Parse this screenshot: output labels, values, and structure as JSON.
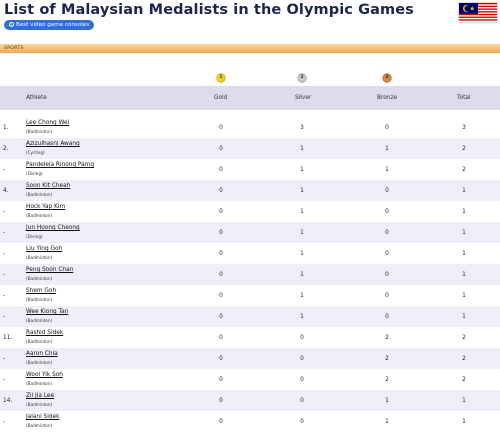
{
  "header": {
    "title": "List of Malaysian Medalists in the Olympic Games",
    "link_label": "Best video game consoles",
    "link_icon": "info-icon",
    "flag_icon": "malaysia-flag-icon"
  },
  "section": {
    "label": "SPORTS"
  },
  "medals": {
    "gold": "1",
    "silver": "2",
    "bronze": "3"
  },
  "columns": {
    "athlete": "Athlete",
    "gold": "Gold",
    "silver": "Silver",
    "bronze": "Bronze",
    "total": "Total"
  },
  "rows": [
    {
      "rank": "1.",
      "name": "Lee Chong Wei",
      "sport": "(Badminton)",
      "gold": "0",
      "silver": "3",
      "bronze": "0",
      "total": "3"
    },
    {
      "rank": "2.",
      "name": "Azizulhasni Awang",
      "sport": "(Cycling)",
      "gold": "0",
      "silver": "1",
      "bronze": "1",
      "total": "2"
    },
    {
      "rank": "-",
      "name": "Pandelela Rinong Pamg",
      "sport": "(Diving)",
      "gold": "0",
      "silver": "1",
      "bronze": "1",
      "total": "2"
    },
    {
      "rank": "4.",
      "name": "Soon Kit Cheah",
      "sport": "(Badminton)",
      "gold": "0",
      "silver": "1",
      "bronze": "0",
      "total": "1"
    },
    {
      "rank": "-",
      "name": "Hock Yap Kim",
      "sport": "(Badminton)",
      "gold": "0",
      "silver": "1",
      "bronze": "0",
      "total": "1"
    },
    {
      "rank": "-",
      "name": "Jun Hoong Cheong",
      "sport": "(Diving)",
      "gold": "0",
      "silver": "1",
      "bronze": "0",
      "total": "1"
    },
    {
      "rank": "-",
      "name": "Liu Ying Goh",
      "sport": "(Badminton)",
      "gold": "0",
      "silver": "1",
      "bronze": "0",
      "total": "1"
    },
    {
      "rank": "-",
      "name": "Peng Soon Chan",
      "sport": "(Badminton)",
      "gold": "0",
      "silver": "1",
      "bronze": "0",
      "total": "1"
    },
    {
      "rank": "-",
      "name": "Shem Goh",
      "sport": "(Badminton)",
      "gold": "0",
      "silver": "1",
      "bronze": "0",
      "total": "1"
    },
    {
      "rank": "-",
      "name": "Wee Kiong Tan",
      "sport": "(Badminton)",
      "gold": "0",
      "silver": "1",
      "bronze": "0",
      "total": "1"
    },
    {
      "rank": "11.",
      "name": "Rashid Sidek",
      "sport": "(Badminton)",
      "gold": "0",
      "silver": "0",
      "bronze": "2",
      "total": "2"
    },
    {
      "rank": "-",
      "name": "Aaron Chia",
      "sport": "(Badminton)",
      "gold": "0",
      "silver": "0",
      "bronze": "2",
      "total": "2"
    },
    {
      "rank": "-",
      "name": "Wooi Yik Soh",
      "sport": "(Badminton)",
      "gold": "0",
      "silver": "0",
      "bronze": "2",
      "total": "2"
    },
    {
      "rank": "14.",
      "name": "Zii Jia Lee",
      "sport": "(Badminton)",
      "gold": "0",
      "silver": "0",
      "bronze": "1",
      "total": "1"
    },
    {
      "rank": "-",
      "name": "Jalani Sidek",
      "sport": "(Badminton)",
      "gold": "0",
      "silver": "0",
      "bronze": "1",
      "total": "1"
    }
  ],
  "colors": {
    "title": "#1c2452",
    "link_pill": "#2f6fd6",
    "header_row": "#dcdced",
    "alt_row": "#eeeef8",
    "section_bar": "#f3a64f",
    "gold": "#f1d31c",
    "silver": "#c9c9c9",
    "bronze": "#d58a43"
  }
}
